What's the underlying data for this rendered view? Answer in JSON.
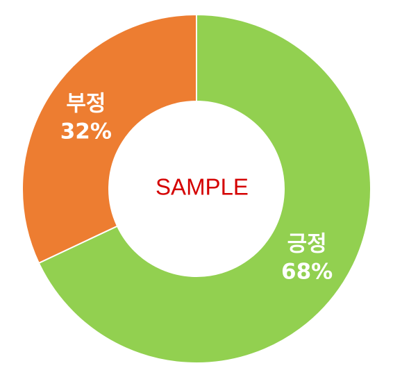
{
  "chart_data": {
    "type": "pie",
    "variant": "donut",
    "categories": [
      "긍정",
      "부정"
    ],
    "values": [
      68,
      32
    ],
    "value_labels": [
      "68%",
      "32%"
    ],
    "colors": [
      "#92D050",
      "#ED7D31"
    ],
    "center_text": "SAMPLE",
    "center_text_color": "#D40000",
    "label_color": "#FFFFFF"
  }
}
